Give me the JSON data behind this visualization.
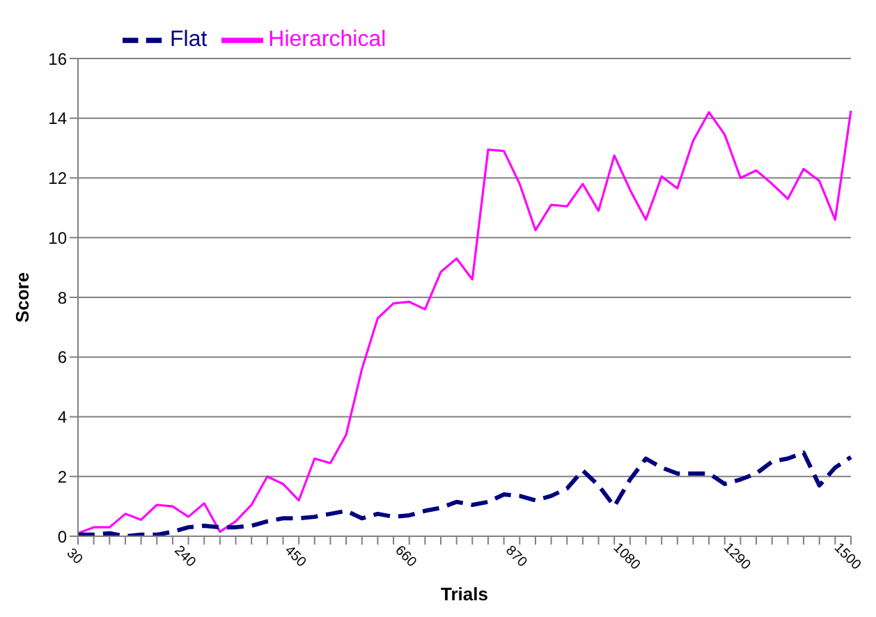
{
  "chart_data": {
    "type": "line",
    "xlabel": "Trials",
    "ylabel": "Score",
    "categories": [
      "30",
      null,
      null,
      null,
      null,
      null,
      null,
      "240",
      null,
      null,
      null,
      null,
      null,
      null,
      "450",
      null,
      null,
      null,
      null,
      null,
      null,
      "660",
      null,
      null,
      null,
      null,
      null,
      null,
      "870",
      null,
      null,
      null,
      null,
      null,
      null,
      "1080",
      null,
      null,
      null,
      null,
      null,
      null,
      "1290",
      null,
      null,
      null,
      null,
      null,
      null,
      "1500"
    ],
    "series": [
      {
        "name": "Hierarchical",
        "color": "#ff00ff",
        "line_style": "solid",
        "values": [
          0.1,
          0.3,
          0.3,
          0.75,
          0.55,
          1.05,
          1.0,
          0.65,
          1.1,
          0.15,
          0.5,
          1.05,
          2.0,
          1.75,
          1.2,
          2.6,
          2.45,
          3.4,
          5.6,
          7.3,
          7.8,
          7.85,
          7.6,
          8.85,
          9.3,
          8.6,
          12.95,
          12.9,
          11.8,
          10.25,
          11.1,
          11.05,
          11.8,
          10.9,
          12.75,
          11.6,
          10.6,
          12.05,
          11.65,
          13.25,
          14.2,
          13.45,
          12.0,
          12.25,
          11.8,
          11.3,
          12.3,
          11.9,
          10.6,
          14.25
        ]
      },
      {
        "name": "Flat",
        "color": "#000080",
        "line_style": "dashed",
        "values": [
          0.05,
          0.05,
          0.1,
          0.0,
          0.05,
          0.05,
          0.15,
          0.3,
          0.35,
          0.3,
          0.3,
          0.35,
          0.5,
          0.6,
          0.6,
          0.65,
          0.75,
          0.85,
          0.6,
          0.75,
          0.65,
          0.7,
          0.85,
          0.95,
          1.15,
          1.05,
          1.15,
          1.4,
          1.35,
          1.2,
          1.35,
          1.6,
          2.2,
          1.7,
          1.0,
          1.9,
          2.6,
          2.3,
          2.1,
          2.1,
          2.1,
          1.75,
          1.9,
          2.1,
          2.5,
          2.6,
          2.8,
          1.7,
          2.3,
          2.65
        ]
      }
    ],
    "ylim": [
      0,
      16
    ],
    "yticks": [
      0,
      2,
      4,
      6,
      8,
      10,
      12,
      14,
      16
    ],
    "grid": "y",
    "legend": "top left",
    "marker": "none"
  }
}
